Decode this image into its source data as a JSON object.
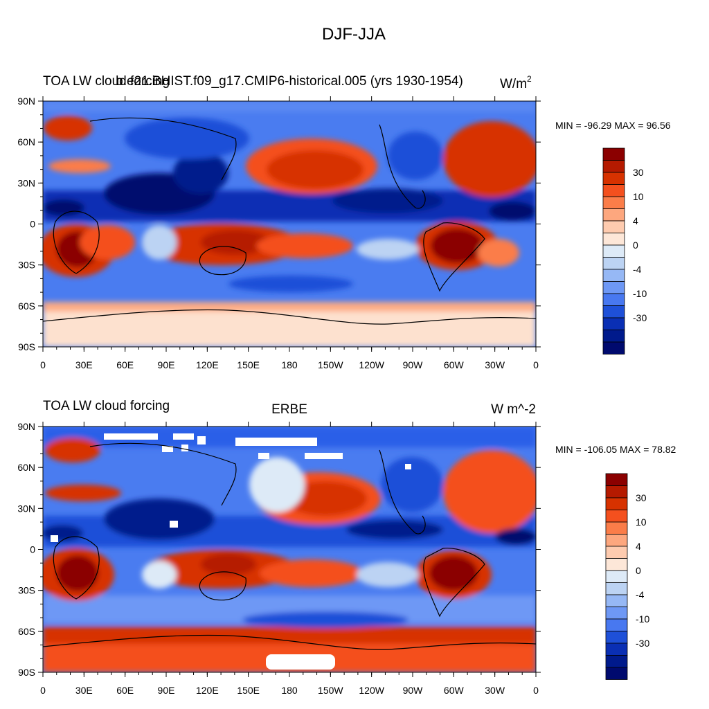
{
  "figure_title": "DJF-JJA",
  "colors": {
    "levels": [
      "#8b0000",
      "#b51a00",
      "#d73200",
      "#f4501e",
      "#fb7d49",
      "#fda77e",
      "#fecbaf",
      "#fde7d8",
      "#ddeaf7",
      "#bcd3f3",
      "#96b8f5",
      "#6e98f5",
      "#4878f0",
      "#1e50d8",
      "#0a2fb4",
      "#001a8c",
      "#000a6e"
    ]
  },
  "chart_data": [
    {
      "type": "heatmap",
      "title_left": "TOA LW cloud forcing",
      "title_center": "b.e21.BHIST.f09_g17.CMIP6-historical.005 (yrs 1930-1954)",
      "units": "W/m",
      "units_sup": "2",
      "min_max": "MIN = -96.29 MAX =  96.56",
      "x_ticks": [
        "0",
        "30E",
        "60E",
        "90E",
        "120E",
        "150E",
        "180",
        "150W",
        "120W",
        "90W",
        "60W",
        "30W",
        "0"
      ],
      "y_ticks": [
        "90N",
        "60N",
        "30N",
        "0",
        "30S",
        "60S",
        "90S"
      ],
      "colorbar_labels": [
        "30",
        "10",
        "4",
        "0",
        "-4",
        "-10",
        "-30"
      ],
      "x_range": [
        0,
        360
      ],
      "y_range": [
        -90,
        90
      ]
    },
    {
      "type": "heatmap",
      "title_left": "TOA LW cloud forcing",
      "title_center": "ERBE",
      "units": "W m^-2",
      "units_sup": "",
      "min_max": "MIN = -106.05 MAX =  78.82",
      "x_ticks": [
        "0",
        "30E",
        "60E",
        "90E",
        "120E",
        "150E",
        "180",
        "150W",
        "120W",
        "90W",
        "60W",
        "30W",
        "0"
      ],
      "y_ticks": [
        "90N",
        "60N",
        "30N",
        "0",
        "30S",
        "60S",
        "90S"
      ],
      "colorbar_labels": [
        "30",
        "10",
        "4",
        "0",
        "-4",
        "-10",
        "-30"
      ],
      "x_range": [
        0,
        360
      ],
      "y_range": [
        -90,
        90
      ]
    }
  ]
}
